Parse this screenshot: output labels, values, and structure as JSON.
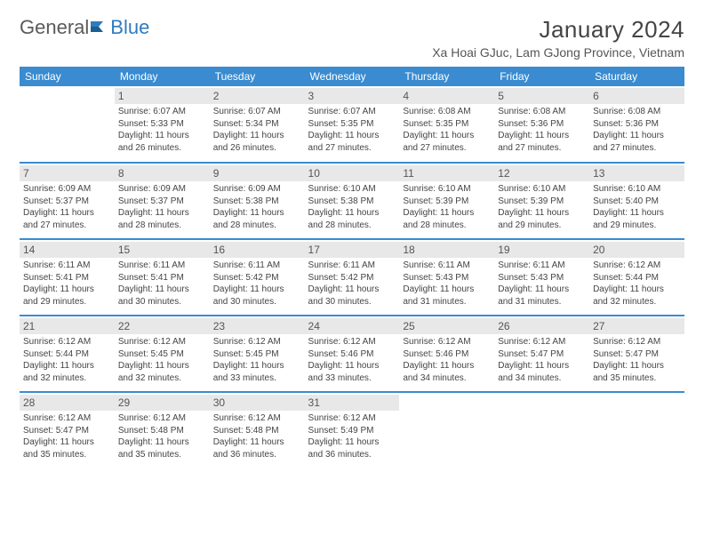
{
  "brand": {
    "text_a": "General",
    "text_b": "Blue"
  },
  "title": "January 2024",
  "location": "Xa Hoai GJuc, Lam GJong Province, Vietnam",
  "colors": {
    "header_bg": "#3a8bd0",
    "header_fg": "#ffffff",
    "daynum_bg": "#e8e8e8",
    "row_divider": "#3a8bd0",
    "logo_gray": "#5a5a5a",
    "logo_blue": "#2f7bbf",
    "text": "#444444"
  },
  "fonts": {
    "title_size": 26,
    "location_size": 14,
    "dow_size": 12,
    "body_size": 10
  },
  "dow": [
    "Sunday",
    "Monday",
    "Tuesday",
    "Wednesday",
    "Thursday",
    "Friday",
    "Saturday"
  ],
  "weeks": [
    [
      null,
      {
        "n": "1",
        "sr": "6:07 AM",
        "ss": "5:33 PM",
        "dl": "11 hours and 26 minutes."
      },
      {
        "n": "2",
        "sr": "6:07 AM",
        "ss": "5:34 PM",
        "dl": "11 hours and 26 minutes."
      },
      {
        "n": "3",
        "sr": "6:07 AM",
        "ss": "5:35 PM",
        "dl": "11 hours and 27 minutes."
      },
      {
        "n": "4",
        "sr": "6:08 AM",
        "ss": "5:35 PM",
        "dl": "11 hours and 27 minutes."
      },
      {
        "n": "5",
        "sr": "6:08 AM",
        "ss": "5:36 PM",
        "dl": "11 hours and 27 minutes."
      },
      {
        "n": "6",
        "sr": "6:08 AM",
        "ss": "5:36 PM",
        "dl": "11 hours and 27 minutes."
      }
    ],
    [
      {
        "n": "7",
        "sr": "6:09 AM",
        "ss": "5:37 PM",
        "dl": "11 hours and 27 minutes."
      },
      {
        "n": "8",
        "sr": "6:09 AM",
        "ss": "5:37 PM",
        "dl": "11 hours and 28 minutes."
      },
      {
        "n": "9",
        "sr": "6:09 AM",
        "ss": "5:38 PM",
        "dl": "11 hours and 28 minutes."
      },
      {
        "n": "10",
        "sr": "6:10 AM",
        "ss": "5:38 PM",
        "dl": "11 hours and 28 minutes."
      },
      {
        "n": "11",
        "sr": "6:10 AM",
        "ss": "5:39 PM",
        "dl": "11 hours and 28 minutes."
      },
      {
        "n": "12",
        "sr": "6:10 AM",
        "ss": "5:39 PM",
        "dl": "11 hours and 29 minutes."
      },
      {
        "n": "13",
        "sr": "6:10 AM",
        "ss": "5:40 PM",
        "dl": "11 hours and 29 minutes."
      }
    ],
    [
      {
        "n": "14",
        "sr": "6:11 AM",
        "ss": "5:41 PM",
        "dl": "11 hours and 29 minutes."
      },
      {
        "n": "15",
        "sr": "6:11 AM",
        "ss": "5:41 PM",
        "dl": "11 hours and 30 minutes."
      },
      {
        "n": "16",
        "sr": "6:11 AM",
        "ss": "5:42 PM",
        "dl": "11 hours and 30 minutes."
      },
      {
        "n": "17",
        "sr": "6:11 AM",
        "ss": "5:42 PM",
        "dl": "11 hours and 30 minutes."
      },
      {
        "n": "18",
        "sr": "6:11 AM",
        "ss": "5:43 PM",
        "dl": "11 hours and 31 minutes."
      },
      {
        "n": "19",
        "sr": "6:11 AM",
        "ss": "5:43 PM",
        "dl": "11 hours and 31 minutes."
      },
      {
        "n": "20",
        "sr": "6:12 AM",
        "ss": "5:44 PM",
        "dl": "11 hours and 32 minutes."
      }
    ],
    [
      {
        "n": "21",
        "sr": "6:12 AM",
        "ss": "5:44 PM",
        "dl": "11 hours and 32 minutes."
      },
      {
        "n": "22",
        "sr": "6:12 AM",
        "ss": "5:45 PM",
        "dl": "11 hours and 32 minutes."
      },
      {
        "n": "23",
        "sr": "6:12 AM",
        "ss": "5:45 PM",
        "dl": "11 hours and 33 minutes."
      },
      {
        "n": "24",
        "sr": "6:12 AM",
        "ss": "5:46 PM",
        "dl": "11 hours and 33 minutes."
      },
      {
        "n": "25",
        "sr": "6:12 AM",
        "ss": "5:46 PM",
        "dl": "11 hours and 34 minutes."
      },
      {
        "n": "26",
        "sr": "6:12 AM",
        "ss": "5:47 PM",
        "dl": "11 hours and 34 minutes."
      },
      {
        "n": "27",
        "sr": "6:12 AM",
        "ss": "5:47 PM",
        "dl": "11 hours and 35 minutes."
      }
    ],
    [
      {
        "n": "28",
        "sr": "6:12 AM",
        "ss": "5:47 PM",
        "dl": "11 hours and 35 minutes."
      },
      {
        "n": "29",
        "sr": "6:12 AM",
        "ss": "5:48 PM",
        "dl": "11 hours and 35 minutes."
      },
      {
        "n": "30",
        "sr": "6:12 AM",
        "ss": "5:48 PM",
        "dl": "11 hours and 36 minutes."
      },
      {
        "n": "31",
        "sr": "6:12 AM",
        "ss": "5:49 PM",
        "dl": "11 hours and 36 minutes."
      },
      null,
      null,
      null
    ]
  ],
  "labels": {
    "sunrise": "Sunrise:",
    "sunset": "Sunset:",
    "daylight": "Daylight:"
  }
}
